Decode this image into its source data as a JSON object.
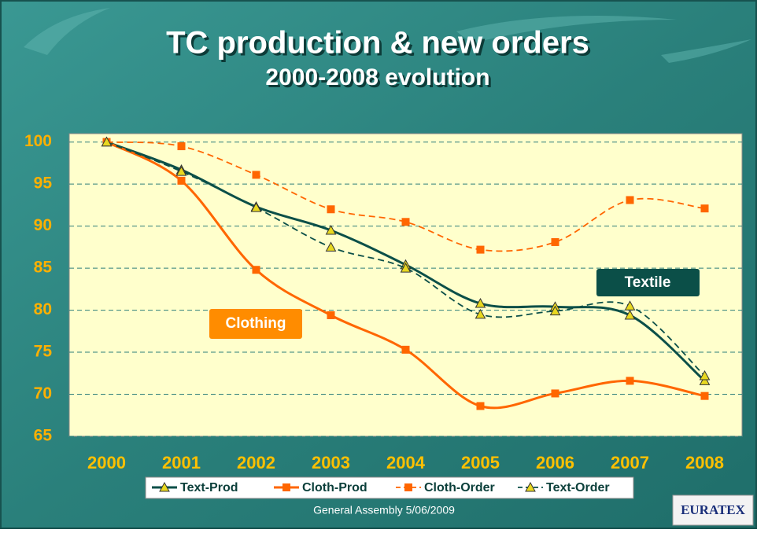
{
  "chart_data": {
    "type": "line",
    "title": "TC production & new orders",
    "subtitle": "2000-2008 evolution",
    "categories": [
      "2000",
      "2001",
      "2002",
      "2003",
      "2004",
      "2005",
      "2006",
      "2007",
      "2008"
    ],
    "series": [
      {
        "name": "Text-Prod",
        "color": "#0b4f48",
        "dash": false,
        "marker": "triangle",
        "values": [
          100,
          96.7,
          92.3,
          89.5,
          85.4,
          80.8,
          80.4,
          79.4,
          71.6
        ]
      },
      {
        "name": "Cloth-Prod",
        "color": "#ff6600",
        "dash": false,
        "marker": "square",
        "values": [
          100,
          95.4,
          84.8,
          79.4,
          75.3,
          68.6,
          70.1,
          71.6,
          69.8
        ]
      },
      {
        "name": "Cloth-Order",
        "color": "#ff6600",
        "dash": true,
        "marker": "square",
        "values": [
          100,
          99.5,
          96.1,
          92.0,
          90.5,
          87.2,
          88.1,
          93.1,
          92.1
        ]
      },
      {
        "name": "Text-Order",
        "color": "#0b4f48",
        "dash": true,
        "marker": "triangle",
        "values": [
          100,
          96.5,
          92.2,
          87.5,
          85.0,
          79.5,
          79.9,
          80.5,
          72.2
        ]
      }
    ],
    "ylim": [
      65,
      101
    ],
    "yticks": [
      65,
      70,
      75,
      80,
      85,
      90,
      95,
      100
    ],
    "grid": true,
    "annotations": [
      "Clothing",
      "Textile"
    ],
    "footer": "General Assembly 5/06/2009",
    "logo": "EURATEX"
  }
}
